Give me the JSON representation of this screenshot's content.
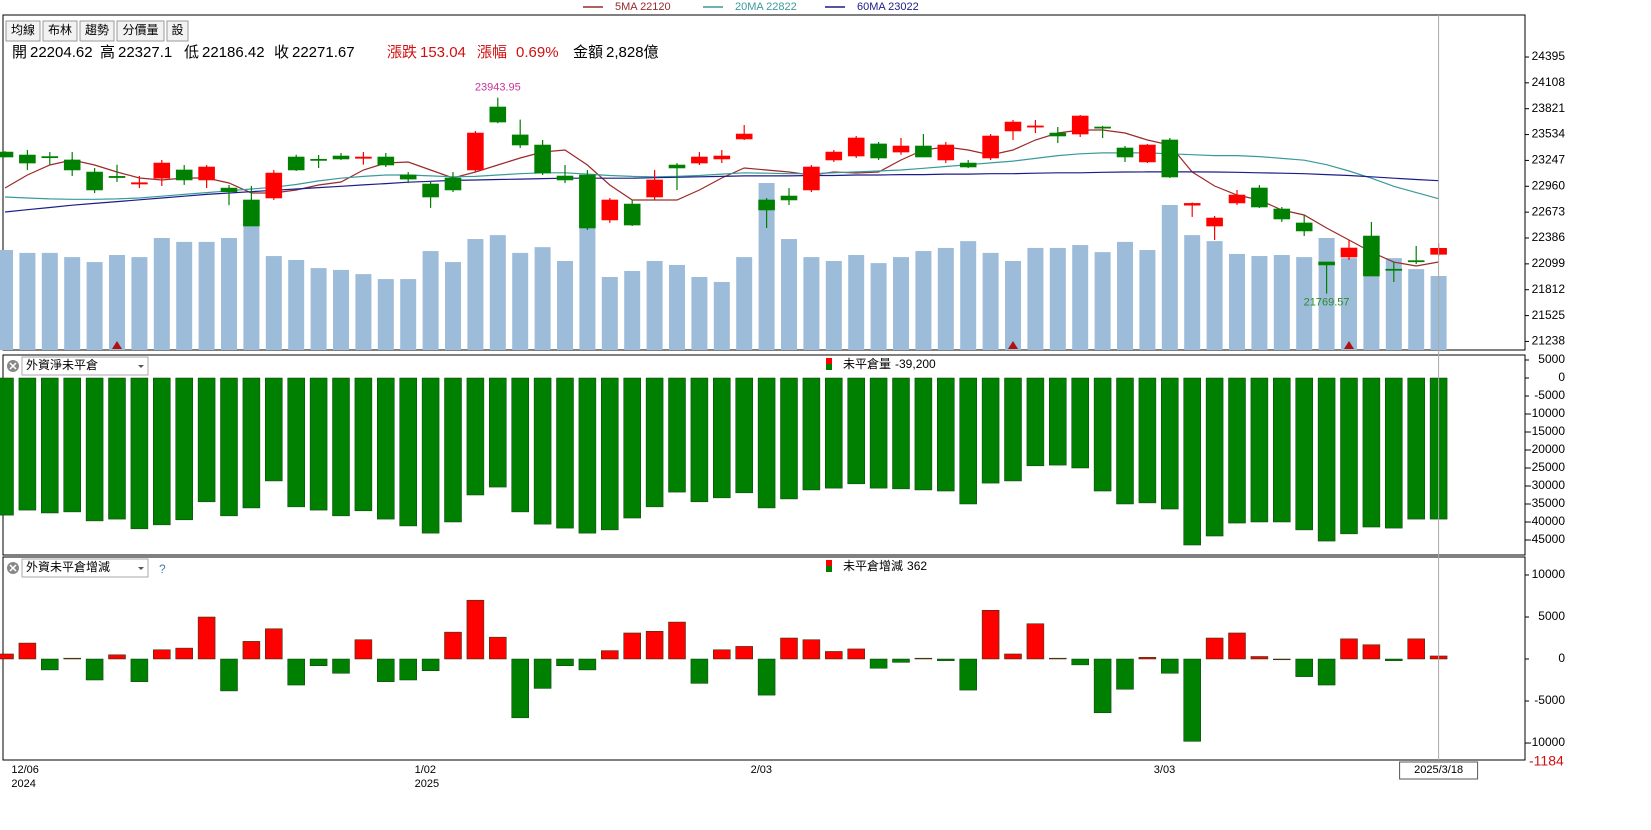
{
  "toolbar": [
    "均線",
    "布林",
    "趨勢",
    "分價量",
    "設"
  ],
  "chart_data": [
    {
      "type": "candlestick",
      "header": {
        "open_label": "開",
        "high_label": "高",
        "low_label": "低",
        "close_label": "收",
        "change_label": "漲跌",
        "change": 153.04,
        "pct_label": "漲幅",
        "pct": 0.69,
        "pct_text": "0.69%",
        "amount_label": "金額",
        "amount_text": "2,828億"
      },
      "categories": [
        null,
        "12/06",
        null,
        null,
        null,
        null,
        null,
        null,
        null,
        null,
        null,
        null,
        null,
        null,
        null,
        null,
        null,
        null,
        null,
        "1/02",
        null,
        null,
        null,
        null,
        null,
        null,
        null,
        null,
        null,
        null,
        null,
        null,
        null,
        null,
        "2/03",
        null,
        null,
        null,
        null,
        null,
        null,
        null,
        null,
        null,
        null,
        null,
        null,
        null,
        null,
        null,
        null,
        null,
        "3/03",
        null,
        null,
        null,
        null,
        null,
        null,
        null,
        null,
        null,
        null,
        null,
        "2025/3/18"
      ],
      "category_years": [
        null,
        "2024",
        null,
        null,
        null,
        null,
        null,
        null,
        null,
        null,
        null,
        null,
        null,
        null,
        null,
        null,
        null,
        null,
        null,
        "2025",
        null,
        null,
        null,
        null,
        null,
        null,
        null,
        null,
        null,
        null,
        null,
        null,
        null,
        null,
        null,
        null,
        null,
        null,
        null,
        null,
        null,
        null,
        null,
        null,
        null,
        null,
        null,
        null,
        null,
        null,
        null,
        null,
        null,
        null,
        null,
        null,
        null,
        null,
        null,
        null,
        null,
        null,
        null,
        null,
        null
      ],
      "open": [
        23340,
        23307,
        23290,
        23252,
        23118,
        23070,
        22985,
        23050,
        23141,
        23030,
        22940,
        22808,
        22830,
        23285,
        23260,
        23296,
        23270,
        23285,
        23085,
        22985,
        23052,
        23141,
        23840,
        23530,
        23418,
        23074,
        23085,
        22586,
        22763,
        22841,
        23196,
        23218,
        23263,
        23485,
        22808,
        22852,
        22919,
        23252,
        23296,
        23430,
        23340,
        23407,
        23252,
        23218,
        23274,
        23574,
        23620,
        23551,
        23540,
        23618,
        23385,
        23230,
        23474,
        22750,
        22519,
        22775,
        22941,
        22708,
        22553,
        22120,
        22175,
        22408,
        22040,
        22135,
        22204.62
      ],
      "high": [
        23350,
        23363,
        23340,
        23340,
        23163,
        23200,
        23074,
        23252,
        23196,
        23196,
        22975,
        22963,
        23141,
        23310,
        23307,
        23330,
        23340,
        23330,
        23118,
        23008,
        23118,
        23574,
        23943.95,
        23700,
        23474,
        23196,
        23141,
        22830,
        22808,
        23141,
        23218,
        23340,
        23363,
        23640,
        22830,
        22940,
        23196,
        23363,
        23518,
        23452,
        23496,
        23540,
        23452,
        23252,
        23540,
        23696,
        23696,
        23618,
        23751,
        23630,
        23407,
        23430,
        23496,
        22780,
        22630,
        22919,
        22974,
        22730,
        22641,
        22120,
        22364,
        22564,
        22120,
        22297,
        22327.1
      ],
      "low": [
        23280,
        23140,
        23200,
        23074,
        22885,
        23008,
        22940,
        22963,
        22975,
        22940,
        22750,
        22519,
        22808,
        23130,
        23163,
        23252,
        23200,
        23174,
        22995,
        22720,
        22896,
        23118,
        23660,
        23385,
        23085,
        22995,
        22475,
        22553,
        22519,
        22808,
        22919,
        23196,
        23218,
        23474,
        22497,
        22752,
        22896,
        23230,
        23274,
        23252,
        23310,
        23285,
        23218,
        23163,
        23252,
        23474,
        23551,
        23440,
        23507,
        23496,
        23230,
        23218,
        23052,
        22620,
        22364,
        22752,
        22719,
        22564,
        22408,
        21769.57,
        22142,
        21964,
        21898,
        22097,
        22186.42
      ],
      "close": [
        23285,
        23218,
        23280,
        23141,
        22919,
        23060,
        23000,
        23218,
        23030,
        23174,
        22900,
        22519,
        23107,
        23141,
        23250,
        23263,
        23285,
        23196,
        23040,
        22841,
        22919,
        23551,
        23673,
        23418,
        23107,
        23030,
        22497,
        22808,
        22530,
        23030,
        23163,
        23285,
        23296,
        23540,
        22697,
        22808,
        23174,
        23340,
        23496,
        23274,
        23407,
        23285,
        23418,
        23174,
        23518,
        23673,
        23630,
        23518,
        23740,
        23607,
        23285,
        23418,
        23063,
        22770,
        22608,
        22863,
        22730,
        22597,
        22464,
        22087,
        22275,
        21964,
        22030,
        22125,
        22271.67
      ],
      "high_value_labels": [
        null,
        null,
        null,
        null,
        null,
        null,
        null,
        null,
        null,
        null,
        null,
        null,
        null,
        null,
        null,
        null,
        null,
        null,
        null,
        null,
        null,
        null,
        "23943.95",
        null,
        null,
        null,
        null,
        null,
        null,
        null,
        null,
        null,
        null,
        null,
        null,
        null,
        null,
        null,
        null,
        null,
        null,
        null,
        null,
        null,
        null,
        null,
        null,
        null,
        null,
        null,
        null,
        null,
        null,
        null,
        null,
        null,
        null,
        null,
        null,
        null,
        null,
        null,
        null,
        null,
        null
      ],
      "low_value_labels": [
        null,
        null,
        null,
        null,
        null,
        null,
        null,
        null,
        null,
        null,
        null,
        null,
        null,
        null,
        null,
        null,
        null,
        null,
        null,
        null,
        null,
        null,
        null,
        null,
        null,
        null,
        null,
        null,
        null,
        null,
        null,
        null,
        null,
        null,
        null,
        null,
        null,
        null,
        null,
        null,
        null,
        null,
        null,
        null,
        null,
        null,
        null,
        null,
        null,
        null,
        null,
        null,
        null,
        null,
        null,
        null,
        null,
        null,
        null,
        "21769.57",
        null,
        null,
        null,
        null,
        null
      ],
      "up_color": "#ff0000",
      "down_color": "#008000",
      "series": [
        {
          "name": "5MA 22120",
          "color": "#9b2a2a",
          "values": [
            22941,
            23085,
            23196,
            23252,
            23196,
            23118,
            23052,
            23030,
            23052,
            23052,
            22996,
            22885,
            22885,
            22919,
            22974,
            23007,
            23141,
            23218,
            23229,
            23141,
            23052,
            23118,
            23196,
            23274,
            23340,
            23363,
            23196,
            22974,
            22808,
            22808,
            22808,
            22919,
            23052,
            23163,
            23141,
            23118,
            23085,
            23118,
            23107,
            23118,
            23252,
            23363,
            23396,
            23363,
            23307,
            23363,
            23474,
            23551,
            23585,
            23585,
            23551,
            23474,
            23418,
            23118,
            22963,
            22863,
            22808,
            22697,
            22641,
            22497,
            22364,
            22230,
            22119,
            22075,
            22120
          ]
        },
        {
          "name": "20MA 22822",
          "color": "#3a9a9a",
          "values": [
            22841,
            22830,
            22820,
            22815,
            22815,
            22820,
            22830,
            22850,
            22870,
            22890,
            22910,
            22930,
            22950,
            22980,
            23020,
            23050,
            23070,
            23085,
            23085,
            23075,
            23065,
            23070,
            23085,
            23100,
            23110,
            23110,
            23095,
            23080,
            23070,
            23065,
            23070,
            23080,
            23095,
            23110,
            23105,
            23100,
            23100,
            23110,
            23120,
            23130,
            23141,
            23160,
            23180,
            23200,
            23220,
            23240,
            23270,
            23300,
            23320,
            23330,
            23330,
            23330,
            23320,
            23310,
            23300,
            23300,
            23290,
            23270,
            23250,
            23200,
            23130,
            23050,
            22960,
            22890,
            22822
          ]
        },
        {
          "name": "60MA 23022",
          "color": "#1c1c8a",
          "values": [
            22675,
            22700,
            22725,
            22750,
            22770,
            22790,
            22810,
            22830,
            22850,
            22870,
            22885,
            22900,
            22915,
            22930,
            22945,
            22960,
            22975,
            22990,
            23005,
            23015,
            23025,
            23030,
            23035,
            23040,
            23045,
            23050,
            23050,
            23050,
            23050,
            23055,
            23060,
            23065,
            23070,
            23075,
            23075,
            23075,
            23080,
            23080,
            23085,
            23085,
            23090,
            23090,
            23095,
            23095,
            23100,
            23100,
            23105,
            23110,
            23110,
            23115,
            23118,
            23120,
            23120,
            23120,
            23118,
            23115,
            23110,
            23105,
            23100,
            23090,
            23080,
            23065,
            23050,
            23035,
            23022
          ]
        }
      ],
      "volume": [
        3820,
        3710,
        3710,
        3550,
        3360,
        3630,
        3550,
        4280,
        4130,
        4130,
        4280,
        4740,
        3590,
        3440,
        3130,
        3060,
        2900,
        2710,
        2710,
        3780,
        3360,
        4240,
        4390,
        3710,
        3930,
        3400,
        6650,
        2790,
        3020,
        3400,
        3250,
        2790,
        2600,
        3550,
        6380,
        4240,
        3550,
        3400,
        3630,
        3320,
        3550,
        3780,
        3900,
        4160,
        3710,
        3400,
        3900,
        3900,
        4010,
        3740,
        4130,
        3820,
        5540,
        4390,
        4160,
        3670,
        3590,
        3630,
        3550,
        4280,
        3510,
        4320,
        3510,
        3090,
        2828
      ],
      "volume_color": "#9dbcda",
      "volume_lim": [
        0,
        12800
      ],
      "signals": [
        5,
        45,
        60
      ],
      "ylim": [
        21143,
        24861
      ],
      "yticks": [
        21238,
        21525,
        21812,
        22099,
        22386,
        22673,
        22960,
        23247,
        23534,
        23821,
        24108,
        24395
      ]
    },
    {
      "type": "bar",
      "selector": "外資淨未平倉",
      "name": "未平倉量",
      "legend_value_label": "-39,200",
      "values": [
        -38100,
        -36700,
        -37500,
        -37200,
        -39700,
        -39200,
        -41900,
        -40800,
        -39400,
        -34400,
        -38300,
        -36100,
        -28600,
        -35800,
        -36700,
        -38300,
        -36900,
        -39200,
        -41100,
        -43100,
        -40000,
        -32500,
        -30300,
        -37200,
        -40600,
        -41700,
        -43100,
        -42200,
        -38900,
        -35800,
        -31700,
        -34400,
        -33300,
        -31900,
        -36100,
        -33600,
        -31100,
        -30600,
        -29400,
        -30600,
        -30800,
        -31100,
        -31400,
        -35000,
        -29200,
        -28600,
        -24400,
        -24200,
        -25000,
        -31400,
        -35000,
        -34700,
        -36400,
        -46400,
        -43900,
        -40300,
        -40000,
        -40000,
        -42200,
        -45300,
        -43300,
        -41400,
        -41700,
        -39200,
        -39200
      ],
      "up_color": "#ff0000",
      "down_color": "#008000",
      "ylim": [
        -49170,
        6390
      ],
      "yticks": [
        5000,
        0,
        -5000,
        -10000,
        -15000,
        -20000,
        -25000,
        -30000,
        -35000,
        -40000,
        -45000
      ]
    },
    {
      "type": "bar",
      "selector": "外資未平倉增減",
      "help": "?",
      "name": "未平倉增減",
      "values": [
        600,
        1900,
        -1300,
        100,
        -2500,
        500,
        -2700,
        1100,
        1300,
        5000,
        -3800,
        2100,
        3600,
        -3100,
        -800,
        -1700,
        2300,
        -2700,
        -2500,
        -1400,
        3200,
        7000,
        2600,
        -7000,
        -3500,
        -800,
        -1300,
        1000,
        3100,
        3300,
        4400,
        -2900,
        1100,
        1500,
        -4300,
        2500,
        2300,
        900,
        1200,
        -1100,
        -400,
        100,
        -200,
        -3700,
        5800,
        600,
        4200,
        100,
        -700,
        -6400,
        -3600,
        200,
        -1700,
        -9800,
        2500,
        3100,
        300,
        0,
        -2100,
        -3100,
        2400,
        1700,
        -200,
        2400,
        362
      ],
      "up_color": "#ff0000",
      "down_color": "#008000",
      "axis_end_label": "-1184",
      "ylim": [
        -12020,
        12140
      ],
      "yticks": [
        10000,
        5000,
        0,
        -5000,
        -10000
      ]
    }
  ]
}
